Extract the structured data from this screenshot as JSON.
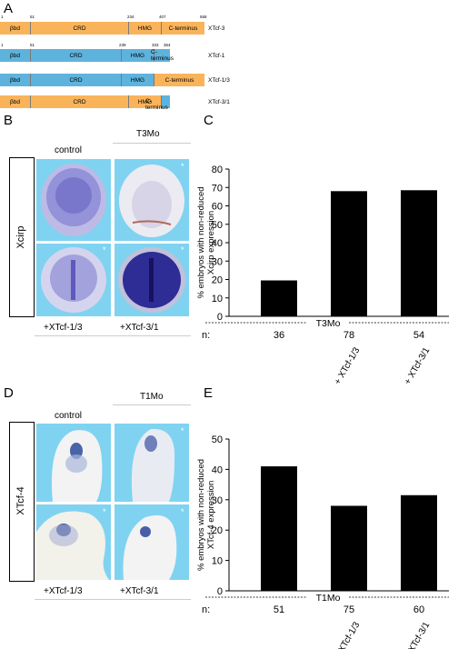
{
  "colors": {
    "orange": "#f9b45b",
    "blue": "#5eb3dd",
    "embryo_bg": "#7fd3f1"
  },
  "panels": {
    "A": "A",
    "B": "B",
    "C": "C",
    "D": "D",
    "E": "E"
  },
  "domains": {
    "positions": [
      "1",
      "51",
      "234",
      "407",
      "558"
    ],
    "positions_tcf1": [
      "1",
      "51",
      "239",
      "333",
      "364"
    ],
    "segments": {
      "bbd": "βbd",
      "crd": "CRD",
      "hmg": "HMG",
      "cterm": "C-terminus"
    },
    "names": [
      "XTcf-3",
      "XTcf-1",
      "XTcf-1/3",
      "XTcf-3/1"
    ]
  },
  "panelB": {
    "col_control": "control",
    "col_mo": "T3Mo",
    "row_label": "Xcirp",
    "bottom_left": "+XTcf-1/3",
    "bottom_right": "+XTcf-3/1",
    "star": "*"
  },
  "panelD": {
    "col_control": "control",
    "col_mo": "T1Mo",
    "row_label": "XTcf-4",
    "bottom_left": "+XTcf-1/3",
    "bottom_right": "+XTcf-3/1",
    "star": "*"
  },
  "chart_data": [
    {
      "type": "bar",
      "categories": [
        "",
        "+ XTcf-1/3",
        "+ XTcf-3/1"
      ],
      "values": [
        19.5,
        68,
        68.5
      ],
      "n": [
        "36",
        "78",
        "54"
      ],
      "n_label": "n:",
      "group_label": "T3Mo",
      "ylabel_lines": [
        "% embryos with non-reduced",
        "Xcirp expression"
      ],
      "ylim": [
        0,
        80
      ],
      "yticks": [
        "0",
        "10",
        "20",
        "30",
        "40",
        "50",
        "60",
        "70",
        "80"
      ]
    },
    {
      "type": "bar",
      "categories": [
        "",
        "+ XTcf-1/3",
        "+ XTcf-3/1"
      ],
      "values": [
        41,
        28,
        31.5
      ],
      "n": [
        "51",
        "75",
        "60"
      ],
      "n_label": "n:",
      "group_label": "T1Mo",
      "ylabel_lines": [
        "% embryos with non-reduced",
        "XTcf-4 expression"
      ],
      "ylim": [
        0,
        50
      ],
      "yticks": [
        "0",
        "10",
        "20",
        "30",
        "40",
        "50"
      ]
    }
  ]
}
